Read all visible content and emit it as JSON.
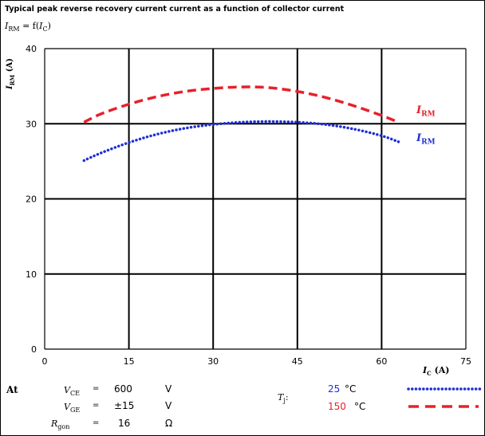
{
  "title": "Typical peak reverse recovery current current as a function of collector current",
  "formula": {
    "lhs_base": "I",
    "lhs_sub": "RM",
    "eq": " = f(",
    "rhs_base": "I",
    "rhs_sub": "C",
    "close": ")"
  },
  "colors": {
    "t25": "#1f2fd8",
    "t150": "#e8202a",
    "grid": "#000000"
  },
  "chart_data": {
    "type": "line",
    "title": "Typical peak reverse recovery current current as a function of collector current",
    "xlabel": "I_C (A)",
    "ylabel": "I_RM (A)",
    "xlim": [
      0,
      75
    ],
    "ylim": [
      0,
      40
    ],
    "xticks": [
      0,
      15,
      30,
      45,
      60,
      75
    ],
    "yticks": [
      0,
      10,
      20,
      30,
      40
    ],
    "grid": true,
    "series": [
      {
        "name": "I_RM",
        "condition": "25 °C",
        "style": "dotted",
        "color": "#1f2fd8",
        "x": [
          7,
          10,
          15,
          20,
          25,
          30,
          35,
          40,
          45,
          50,
          55,
          60,
          63
        ],
        "y": [
          25.1,
          26.1,
          27.5,
          28.6,
          29.4,
          29.9,
          30.2,
          30.3,
          30.2,
          29.9,
          29.3,
          28.4,
          27.6
        ]
      },
      {
        "name": "I_RM",
        "condition": "150 °C",
        "style": "dashed",
        "color": "#e8202a",
        "x": [
          7,
          10,
          15,
          20,
          25,
          30,
          35,
          40,
          45,
          50,
          55,
          60,
          63
        ],
        "y": [
          30.2,
          31.3,
          32.6,
          33.6,
          34.3,
          34.7,
          34.9,
          34.8,
          34.3,
          33.5,
          32.4,
          31.1,
          30.2
        ]
      }
    ]
  },
  "axis": {
    "ylabel_base": "I",
    "ylabel_sub": "RM",
    "ylabel_unit": " (A)",
    "xlabel_base": "I",
    "xlabel_sub": "C",
    "xlabel_unit": " (A)"
  },
  "curve_labels": [
    {
      "base": "I",
      "sub": "RM"
    },
    {
      "base": "I",
      "sub": "RM"
    }
  ],
  "conditions": {
    "at": "At",
    "vce": {
      "sym": "V",
      "sub": "CE",
      "eq": "=",
      "value": "600",
      "unit": "V"
    },
    "vge": {
      "sym": "V",
      "sub": "GE",
      "eq": "=",
      "value": "±15",
      "unit": "V"
    },
    "rgon": {
      "sym": "R",
      "sub": "gon",
      "eq": "=",
      "value": "16",
      "unit": "Ω"
    },
    "tj": {
      "sym": "T",
      "sub": "j",
      "colon": ":"
    },
    "temps": [
      {
        "value": "25",
        "unit": "°C",
        "color": "#1f2fd8",
        "style": "dotted"
      },
      {
        "value": "150",
        "unit": "°C",
        "color": "#e8202a",
        "style": "dashed"
      }
    ]
  }
}
